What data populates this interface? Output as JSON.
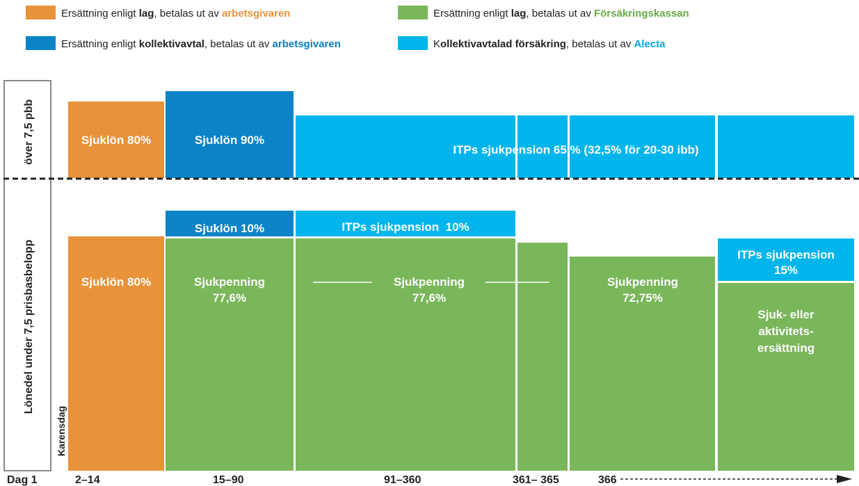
{
  "legend": [
    {
      "parts": [
        "Ersättning enligt ",
        "lag",
        ", betalas ut av ",
        "arbetsgivaren"
      ]
    },
    {
      "parts": [
        "Ersättning enligt ",
        "lag",
        ", betalas ut av ",
        "Försäkringskassan"
      ]
    },
    {
      "parts": [
        "Ersättning enligt ",
        "kollektivavtal",
        ", betalas ut av ",
        "arbetsgivaren"
      ]
    },
    {
      "parts": [
        "K",
        "ollektivavtalad försäkring",
        ", betalas ut av ",
        "Alecta"
      ]
    }
  ],
  "rows": {
    "upper": "över 7,5 pbb",
    "lower": "Lönedel under 7,5 prisbasbelopp",
    "karensdag": "Karensdag"
  },
  "upper_blocks": [
    {
      "lines": [
        "Sjuklön 80%"
      ]
    },
    {
      "lines": [
        "Sjuklön 90%"
      ]
    },
    {
      "lines": [
        "ITPs sjukpension 65 % (32,5% för 20-30 ibb)"
      ]
    }
  ],
  "lower_blocks": [
    {
      "lines": [
        "Sjuklön 80%"
      ]
    },
    {
      "lines": [
        "Sjuklön 10%"
      ]
    },
    {
      "lines": [
        "Sjukpenning",
        "77,6%"
      ]
    },
    {
      "lines": [
        "ITPs sjukpension  10%"
      ]
    },
    {
      "lines": [
        "Sjukpenning",
        "77,6%"
      ]
    },
    {
      "lines": [
        "Sjukpenning",
        "72,75%"
      ]
    },
    {
      "lines": [
        "ITPs sjukpension",
        "15%"
      ]
    },
    {
      "lines": [
        "Sjuk- eller",
        "aktivitets-",
        "ersättning"
      ]
    }
  ],
  "axis": [
    "Dag 1",
    "2–14",
    "15–90",
    "91–360",
    "361– 365",
    "366"
  ]
}
